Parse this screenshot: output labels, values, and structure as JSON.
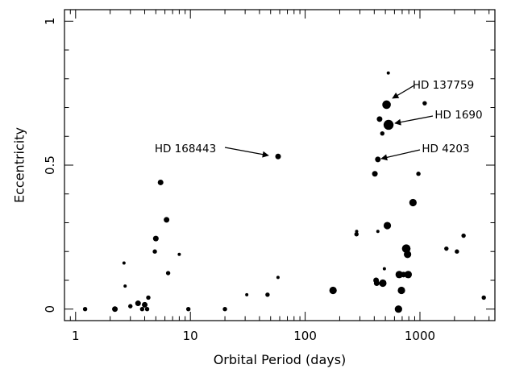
{
  "chart_data": {
    "type": "scatter",
    "xlabel": "Orbital Period (days)",
    "ylabel": "Eccentricity",
    "xscale": "log",
    "xlim": [
      0.8,
      4500
    ],
    "ylim": [
      -0.04,
      1.04
    ],
    "grid": false,
    "x_tick_labels": [
      {
        "value": 1,
        "label": "1"
      },
      {
        "value": 10,
        "label": "10"
      },
      {
        "value": 100,
        "label": "100"
      },
      {
        "value": 1000,
        "label": "1000"
      }
    ],
    "y_tick_labels": [
      {
        "value": 0,
        "label": "0"
      },
      {
        "value": 0.5,
        "label": "0.5"
      },
      {
        "value": 1,
        "label": "1"
      }
    ],
    "points": [
      {
        "x": 1.21,
        "y": 0.0,
        "size": "s"
      },
      {
        "x": 2.2,
        "y": 0.0,
        "size": "m"
      },
      {
        "x": 2.64,
        "y": 0.16,
        "size": "xs"
      },
      {
        "x": 2.7,
        "y": 0.08,
        "size": "xs"
      },
      {
        "x": 3.0,
        "y": 0.01,
        "size": "s"
      },
      {
        "x": 3.5,
        "y": 0.02,
        "size": "m"
      },
      {
        "x": 3.8,
        "y": 0.0,
        "size": "s"
      },
      {
        "x": 4.0,
        "y": 0.015,
        "size": "m"
      },
      {
        "x": 4.2,
        "y": 0.0,
        "size": "s"
      },
      {
        "x": 4.3,
        "y": 0.04,
        "size": "s"
      },
      {
        "x": 4.9,
        "y": 0.2,
        "size": "s"
      },
      {
        "x": 5.0,
        "y": 0.245,
        "size": "m"
      },
      {
        "x": 5.5,
        "y": 0.44,
        "size": "m"
      },
      {
        "x": 6.2,
        "y": 0.31,
        "size": "m"
      },
      {
        "x": 6.4,
        "y": 0.125,
        "size": "s"
      },
      {
        "x": 8.0,
        "y": 0.19,
        "size": "xs"
      },
      {
        "x": 9.6,
        "y": 0.0,
        "size": "s"
      },
      {
        "x": 20.0,
        "y": 0.0,
        "size": "s"
      },
      {
        "x": 31.0,
        "y": 0.05,
        "size": "xs"
      },
      {
        "x": 47.0,
        "y": 0.05,
        "size": "s"
      },
      {
        "x": 58.0,
        "y": 0.11,
        "size": "xs"
      },
      {
        "x": 58.1,
        "y": 0.53,
        "size": "m"
      },
      {
        "x": 175.0,
        "y": 0.065,
        "size": "l"
      },
      {
        "x": 280.0,
        "y": 0.26,
        "size": "s"
      },
      {
        "x": 281.0,
        "y": 0.27,
        "size": "xs"
      },
      {
        "x": 405.0,
        "y": 0.47,
        "size": "m"
      },
      {
        "x": 415.0,
        "y": 0.1,
        "size": "m"
      },
      {
        "x": 420.0,
        "y": 0.09,
        "size": "m"
      },
      {
        "x": 430.0,
        "y": 0.52,
        "size": "m"
      },
      {
        "x": 430.0,
        "y": 0.27,
        "size": "xs"
      },
      {
        "x": 445.0,
        "y": 0.66,
        "size": "m"
      },
      {
        "x": 470.0,
        "y": 0.61,
        "size": "s"
      },
      {
        "x": 475.0,
        "y": 0.09,
        "size": "l"
      },
      {
        "x": 490.0,
        "y": 0.14,
        "size": "xs"
      },
      {
        "x": 512.0,
        "y": 0.71,
        "size": "xl"
      },
      {
        "x": 520.0,
        "y": 0.29,
        "size": "l"
      },
      {
        "x": 530.0,
        "y": 0.82,
        "size": "xs"
      },
      {
        "x": 533.0,
        "y": 0.64,
        "size": "xxl"
      },
      {
        "x": 650.0,
        "y": 0.0,
        "size": "l"
      },
      {
        "x": 660.0,
        "y": 0.12,
        "size": "l"
      },
      {
        "x": 690.0,
        "y": 0.065,
        "size": "l"
      },
      {
        "x": 720.0,
        "y": 0.12,
        "size": "m"
      },
      {
        "x": 760.0,
        "y": 0.21,
        "size": "xl"
      },
      {
        "x": 780.0,
        "y": 0.19,
        "size": "l"
      },
      {
        "x": 790.0,
        "y": 0.12,
        "size": "l"
      },
      {
        "x": 870.0,
        "y": 0.37,
        "size": "l"
      },
      {
        "x": 970.0,
        "y": 0.47,
        "size": "s"
      },
      {
        "x": 1100.0,
        "y": 0.715,
        "size": "s"
      },
      {
        "x": 1700.0,
        "y": 0.21,
        "size": "s"
      },
      {
        "x": 2100.0,
        "y": 0.2,
        "size": "s"
      },
      {
        "x": 2400.0,
        "y": 0.255,
        "size": "s"
      },
      {
        "x": 3600.0,
        "y": 0.04,
        "size": "s"
      }
    ],
    "annotations": [
      {
        "text": "HD 168443",
        "x": 58.1,
        "y": 0.53
      },
      {
        "text": "HD 137759",
        "x": 512.0,
        "y": 0.71
      },
      {
        "text": "HD 1690",
        "x": 533.0,
        "y": 0.64
      },
      {
        "text": "HD 4203",
        "x": 430.0,
        "y": 0.52
      }
    ]
  }
}
